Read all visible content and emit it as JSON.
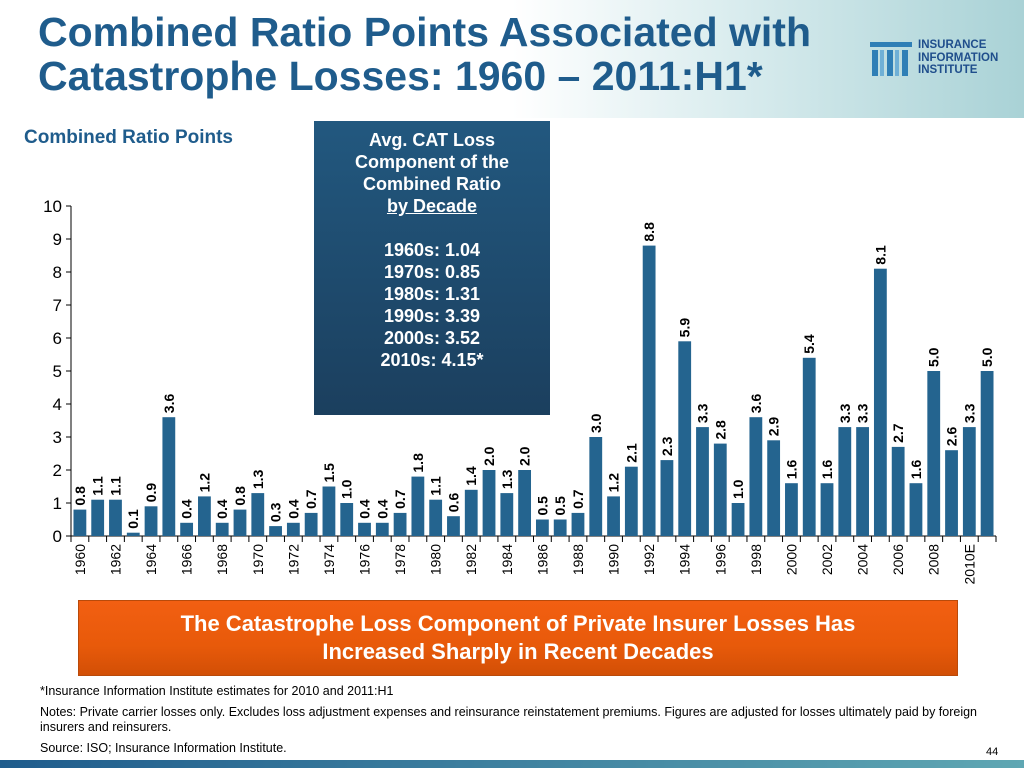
{
  "header": {
    "title_line1": "Combined Ratio Points Associated with",
    "title_line2": "Catastrophe Losses: 1960 – 2011:H1*",
    "logo": {
      "line1": "INSURANCE",
      "line2": "INFORMATION",
      "line3": "INSTITUTE"
    }
  },
  "axis_heading": "Combined Ratio Points",
  "decade_box": {
    "line1": "Avg. CAT  Loss",
    "line2": "Component of the",
    "line3": "Combined Ratio",
    "line4": "by Decade",
    "items": [
      "1960s: 1.04",
      "1970s: 0.85",
      "1980s: 1.31",
      "1990s: 3.39",
      "2000s: 3.52",
      "2010s: 4.15*"
    ]
  },
  "callout": {
    "line1": "The Catastrophe Loss Component of Private Insurer Losses Has",
    "line2": "Increased Sharply in Recent Decades"
  },
  "notes": {
    "estimate": "*Insurance Information Institute estimates for 2010 and 2011:H1",
    "notes": "Notes: Private carrier losses only.  Excludes loss adjustment expenses and reinsurance reinstatement premiums. Figures are adjusted for losses ultimately paid by foreign insurers and reinsurers.",
    "source": "Source: ISO; Insurance Information Institute."
  },
  "page_number": "44",
  "colors": {
    "bar": "#24648f",
    "title": "#1f5c8c",
    "callout": "#ee5c0e"
  },
  "chart_data": {
    "type": "bar",
    "title": "",
    "xlabel": "",
    "ylabel": "Combined Ratio Points",
    "ylim": [
      0,
      10
    ],
    "yticks": [
      0,
      1,
      2,
      3,
      4,
      5,
      6,
      7,
      8,
      9,
      10
    ],
    "categories": [
      "1960",
      "1961",
      "1962",
      "1963",
      "1964",
      "1965",
      "1966",
      "1967",
      "1968",
      "1969",
      "1970",
      "1971",
      "1972",
      "1973",
      "1974",
      "1975",
      "1976",
      "1977",
      "1978",
      "1979",
      "1980",
      "1981",
      "1982",
      "1983",
      "1984",
      "1985",
      "1986",
      "1987",
      "1988",
      "1989",
      "1990",
      "1991",
      "1992",
      "1993",
      "1994",
      "1995",
      "1996",
      "1997",
      "1998",
      "1999",
      "2000",
      "2001",
      "2002",
      "2003",
      "2004",
      "2005",
      "2006",
      "2007",
      "2008",
      "2009",
      "2010E",
      "2011"
    ],
    "tick_labels": [
      "1960",
      "",
      "1962",
      "",
      "1964",
      "",
      "1966",
      "",
      "1968",
      "",
      "1970",
      "",
      "1972",
      "",
      "1974",
      "",
      "1976",
      "",
      "1978",
      "",
      "1980",
      "",
      "1982",
      "",
      "1984",
      "",
      "1986",
      "",
      "1988",
      "",
      "1990",
      "",
      "1992",
      "",
      "1994",
      "",
      "1996",
      "",
      "1998",
      "",
      "2000",
      "",
      "2002",
      "",
      "2004",
      "",
      "2006",
      "",
      "2008",
      "",
      "2010E",
      ""
    ],
    "values": [
      0.8,
      1.1,
      1.1,
      0.1,
      0.9,
      3.6,
      0.4,
      1.2,
      0.4,
      0.8,
      1.3,
      0.3,
      0.4,
      0.7,
      1.5,
      1.0,
      0.4,
      0.4,
      0.7,
      1.8,
      1.1,
      0.6,
      1.4,
      2.0,
      1.3,
      2.0,
      0.5,
      0.5,
      0.7,
      3.0,
      1.2,
      2.1,
      8.8,
      2.3,
      5.9,
      3.3,
      2.8,
      1.0,
      3.6,
      2.9,
      1.6,
      5.4,
      1.6,
      3.3,
      3.3,
      8.1,
      2.7,
      1.6,
      5.0,
      2.6,
      3.3,
      5.0
    ],
    "data_labels": [
      "0.8",
      "1.1",
      "1.1",
      "0.1",
      "0.9",
      "3.6",
      "0.4",
      "1.2",
      "0.4",
      "0.8",
      "1.3",
      "0.3",
      "0.4",
      "0.7",
      "1.5",
      "1.0",
      "0.4",
      "0.4",
      "0.7",
      "1.8",
      "1.1",
      "0.6",
      "1.4",
      "2.0",
      "1.3",
      "2.0",
      "0.5",
      "0.5",
      "0.7",
      "3.0",
      "1.2",
      "2.1",
      "8.8",
      "2.3",
      "5.9",
      "3.3",
      "2.8",
      "1.0",
      "3.6",
      "2.9",
      "1.6",
      "5.4",
      "1.6",
      "3.3",
      "3.3",
      "8.1",
      "2.7",
      "1.6",
      "5.0",
      "2.6",
      "3.3",
      "5.0"
    ],
    "grid": false,
    "legend": "none"
  }
}
